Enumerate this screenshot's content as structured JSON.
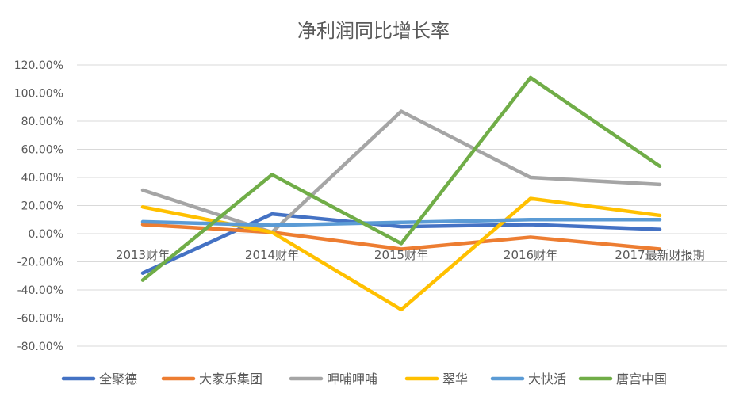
{
  "chart_data": {
    "type": "line",
    "title": "净利润同比增长率",
    "categories": [
      "2013财年",
      "2014财年",
      "2015财年",
      "2016财年",
      "2017最新财报期"
    ],
    "ylim": [
      -80,
      120
    ],
    "yticks": [
      {
        "value": 120,
        "label": "120.00%"
      },
      {
        "value": 100,
        "label": "100.00%"
      },
      {
        "value": 80,
        "label": "80.00%"
      },
      {
        "value": 60,
        "label": "60.00%"
      },
      {
        "value": 40,
        "label": "40.00%"
      },
      {
        "value": 20,
        "label": "20.00%"
      },
      {
        "value": 0,
        "label": "0.00%"
      },
      {
        "value": -20,
        "label": "-20.00%"
      },
      {
        "value": -40,
        "label": "-40.00%"
      },
      {
        "value": -60,
        "label": "-60.00%"
      },
      {
        "value": -80,
        "label": "-80.00%"
      }
    ],
    "grid": true,
    "legend_position": "bottom",
    "series": [
      {
        "name": "全聚德",
        "color": "#4472C4",
        "values": [
          -28,
          14,
          5,
          6.5,
          3
        ]
      },
      {
        "name": "大家乐集团",
        "color": "#ED7D31",
        "values": [
          6.5,
          1,
          -11,
          -2.5,
          -11
        ]
      },
      {
        "name": "呷哺呷哺",
        "color": "#A5A5A5",
        "values": [
          31,
          1,
          87,
          40,
          35
        ]
      },
      {
        "name": "翠华",
        "color": "#FFC000",
        "values": [
          19,
          1,
          -54,
          25,
          13
        ]
      },
      {
        "name": "大快活",
        "color": "#5B9BD5",
        "values": [
          8.5,
          6,
          8,
          10,
          10
        ]
      },
      {
        "name": "唐宫中国",
        "color": "#70AD47",
        "values": [
          -33,
          42,
          -7,
          111,
          48
        ]
      }
    ]
  }
}
